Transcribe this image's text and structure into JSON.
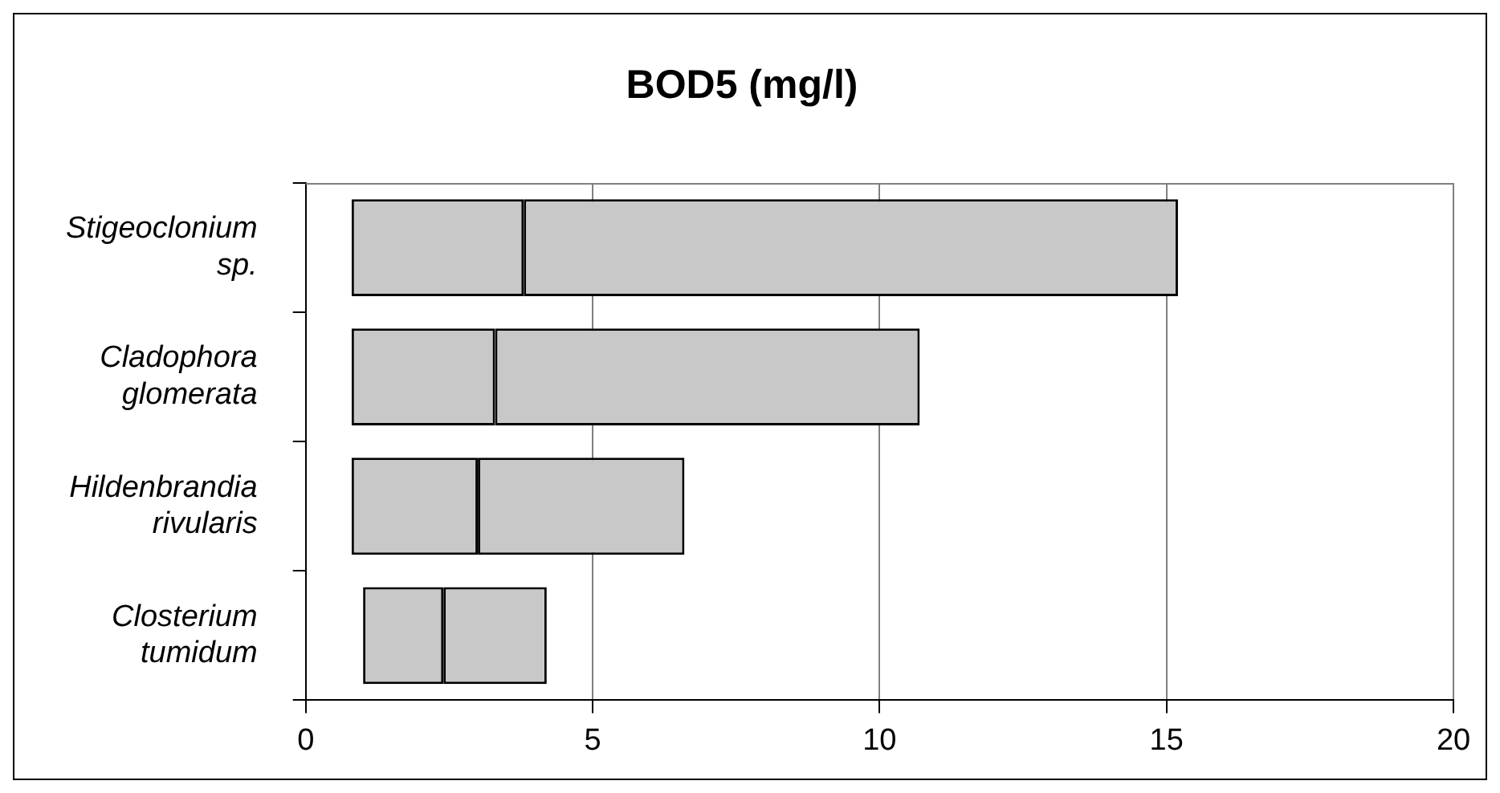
{
  "chart_data": {
    "type": "bar",
    "title": "BOD5 (mg/l)",
    "orientation": "horizontal",
    "categories": [
      "Stigeoclonium sp.",
      "Cladophora glomerata",
      "Hildenbrandia rivularis",
      "Closterium tumidum"
    ],
    "series": [
      {
        "color": "#c8c8c8",
        "base": [
          0.8,
          0.8,
          0.8,
          1.0
        ],
        "values": [
          3.0,
          2.5,
          2.2,
          1.4
        ]
      },
      {
        "color": "#c8c8c8",
        "base": [
          3.8,
          3.3,
          3.0,
          2.4
        ],
        "values": [
          11.4,
          7.4,
          3.6,
          1.8
        ]
      }
    ],
    "xlim": [
      0,
      20
    ],
    "xticks": [
      0,
      5,
      10,
      15,
      20
    ],
    "grid": "x"
  }
}
